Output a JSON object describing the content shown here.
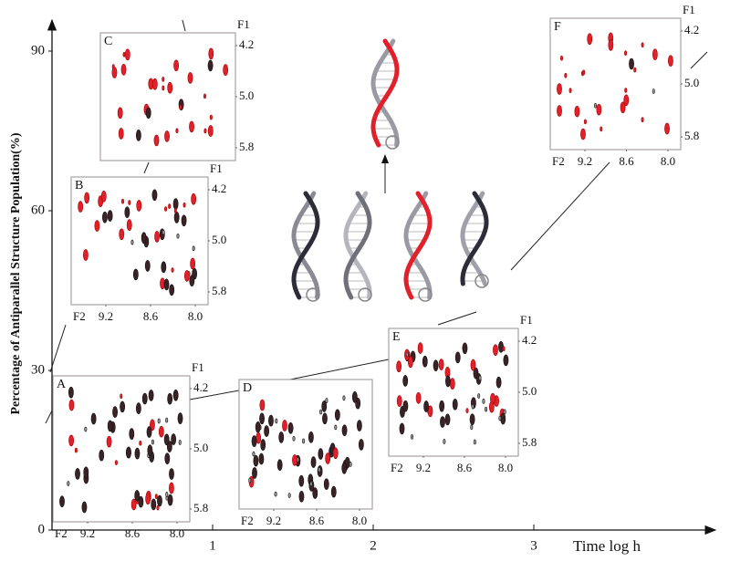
{
  "chart_data": {
    "type": "scatter",
    "y_label": "Percentage of Antiparallel Structure Population(%)",
    "x_label": "Time log h",
    "xlim": [
      0,
      4.1
    ],
    "ylim": [
      0,
      95
    ],
    "xticks": [
      1,
      2,
      3
    ],
    "yticks": [
      0,
      30,
      60,
      90
    ],
    "panels": [
      {
        "label": "A",
        "f1": "F1",
        "f1_ticks": [
          4.2,
          {
            "value": 5,
            "label": "5.0"
          },
          5.8
        ],
        "f2": "F2",
        "f2_ticks": [
          9.2,
          8.6,
          {
            "value": 8,
            "label": "8.0"
          }
        ]
      },
      {
        "label": "B",
        "f1": "F1",
        "f1_ticks": [
          4.2,
          {
            "value": 5,
            "label": "5.0"
          },
          5.8
        ],
        "f2": "F2",
        "f2_ticks": [
          9.2,
          8.6,
          {
            "value": 8,
            "label": "8.0"
          }
        ]
      },
      {
        "label": "C",
        "f1": "F1",
        "f1_ticks": [
          4.2,
          {
            "value": 5,
            "label": "5.0"
          },
          5.8
        ]
      },
      {
        "label": "D",
        "f2": "F2",
        "f2_ticks": [
          9.2,
          8.6,
          {
            "value": 8,
            "label": "8.0"
          }
        ]
      },
      {
        "label": "E",
        "f1": "F1",
        "f1_ticks": [
          4.2,
          {
            "value": 5,
            "label": "5.0"
          },
          5.8
        ],
        "f2": "F2",
        "f2_ticks": [
          9.2,
          8.6,
          {
            "value": 8,
            "label": "8.0"
          }
        ]
      },
      {
        "label": "F",
        "f1": "F1",
        "f1_ticks": [
          4.2,
          {
            "value": 5,
            "label": "5.0"
          },
          5.8
        ],
        "f2": "F2",
        "f2_ticks": [
          9.2,
          8.6,
          {
            "value": 8,
            "label": "8.0"
          }
        ]
      }
    ]
  }
}
